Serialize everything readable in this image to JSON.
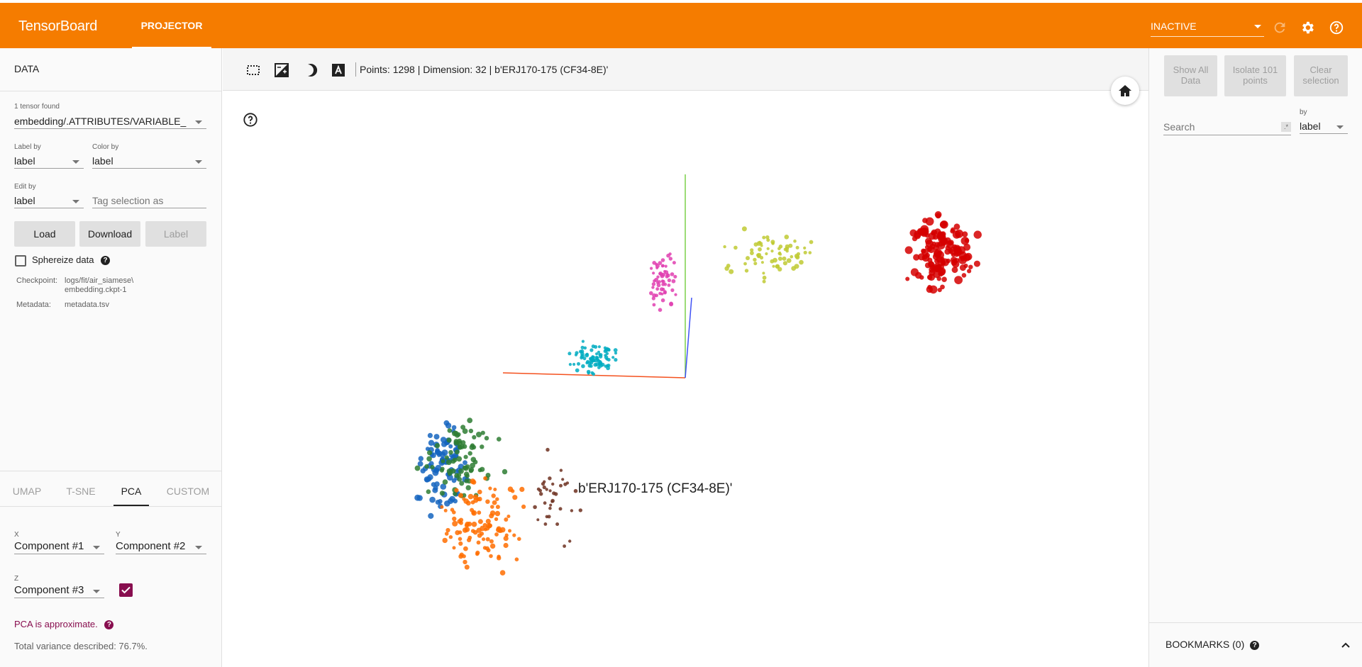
{
  "app": {
    "title": "TensorBoard",
    "tab": "PROJECTOR"
  },
  "header": {
    "run_select": "INACTIVE",
    "icons": [
      "refresh-icon",
      "settings-icon",
      "help-icon"
    ]
  },
  "data_panel": {
    "title": "DATA",
    "tensor_found_label": "1 tensor found",
    "tensor_value": "embedding/.ATTRIBUTES/VARIABLE_",
    "label_by": {
      "label": "Label by",
      "value": "label"
    },
    "color_by": {
      "label": "Color by",
      "value": "label"
    },
    "edit_by": {
      "label": "Edit by",
      "value": "label"
    },
    "tag_placeholder": "Tag selection as",
    "buttons": {
      "load": "Load",
      "download": "Download",
      "label": "Label"
    },
    "sphereize": "Sphereize data",
    "checkpoint_key": "Checkpoint:",
    "checkpoint_line1": "logs/fit/air_siamese\\",
    "checkpoint_line2": "embedding.ckpt-1",
    "metadata_key": "Metadata:",
    "metadata_value": "metadata.tsv"
  },
  "projection": {
    "tabs": [
      "UMAP",
      "T-SNE",
      "PCA",
      "CUSTOM"
    ],
    "active_tab": "PCA",
    "x": {
      "letter": "X",
      "value": "Component #1"
    },
    "y": {
      "letter": "Y",
      "value": "Component #2"
    },
    "z": {
      "letter": "Z",
      "value": "Component #3",
      "enabled": true
    },
    "approx": "PCA is approximate.",
    "variance": "Total variance described: 76.7%."
  },
  "toolbar": {
    "status": "Points: 1298 | Dimension: 32 | b'ERJ170-175 (CF34-8E)'"
  },
  "scatter": {
    "hover_label": "b'ERJ170-175 (CF34-8E)'"
  },
  "inspector": {
    "show_all": [
      "Show All",
      "Data"
    ],
    "isolate": [
      "Isolate 101",
      "points"
    ],
    "clear": [
      "Clear",
      "selection"
    ],
    "search_placeholder": "Search",
    "regex": ".*",
    "by_label": "by",
    "by_value": "label"
  },
  "bookmarks": {
    "title": "BOOKMARKS (0)"
  },
  "colors": {
    "orange": "#f57c00",
    "accent": "#880e4f"
  }
}
